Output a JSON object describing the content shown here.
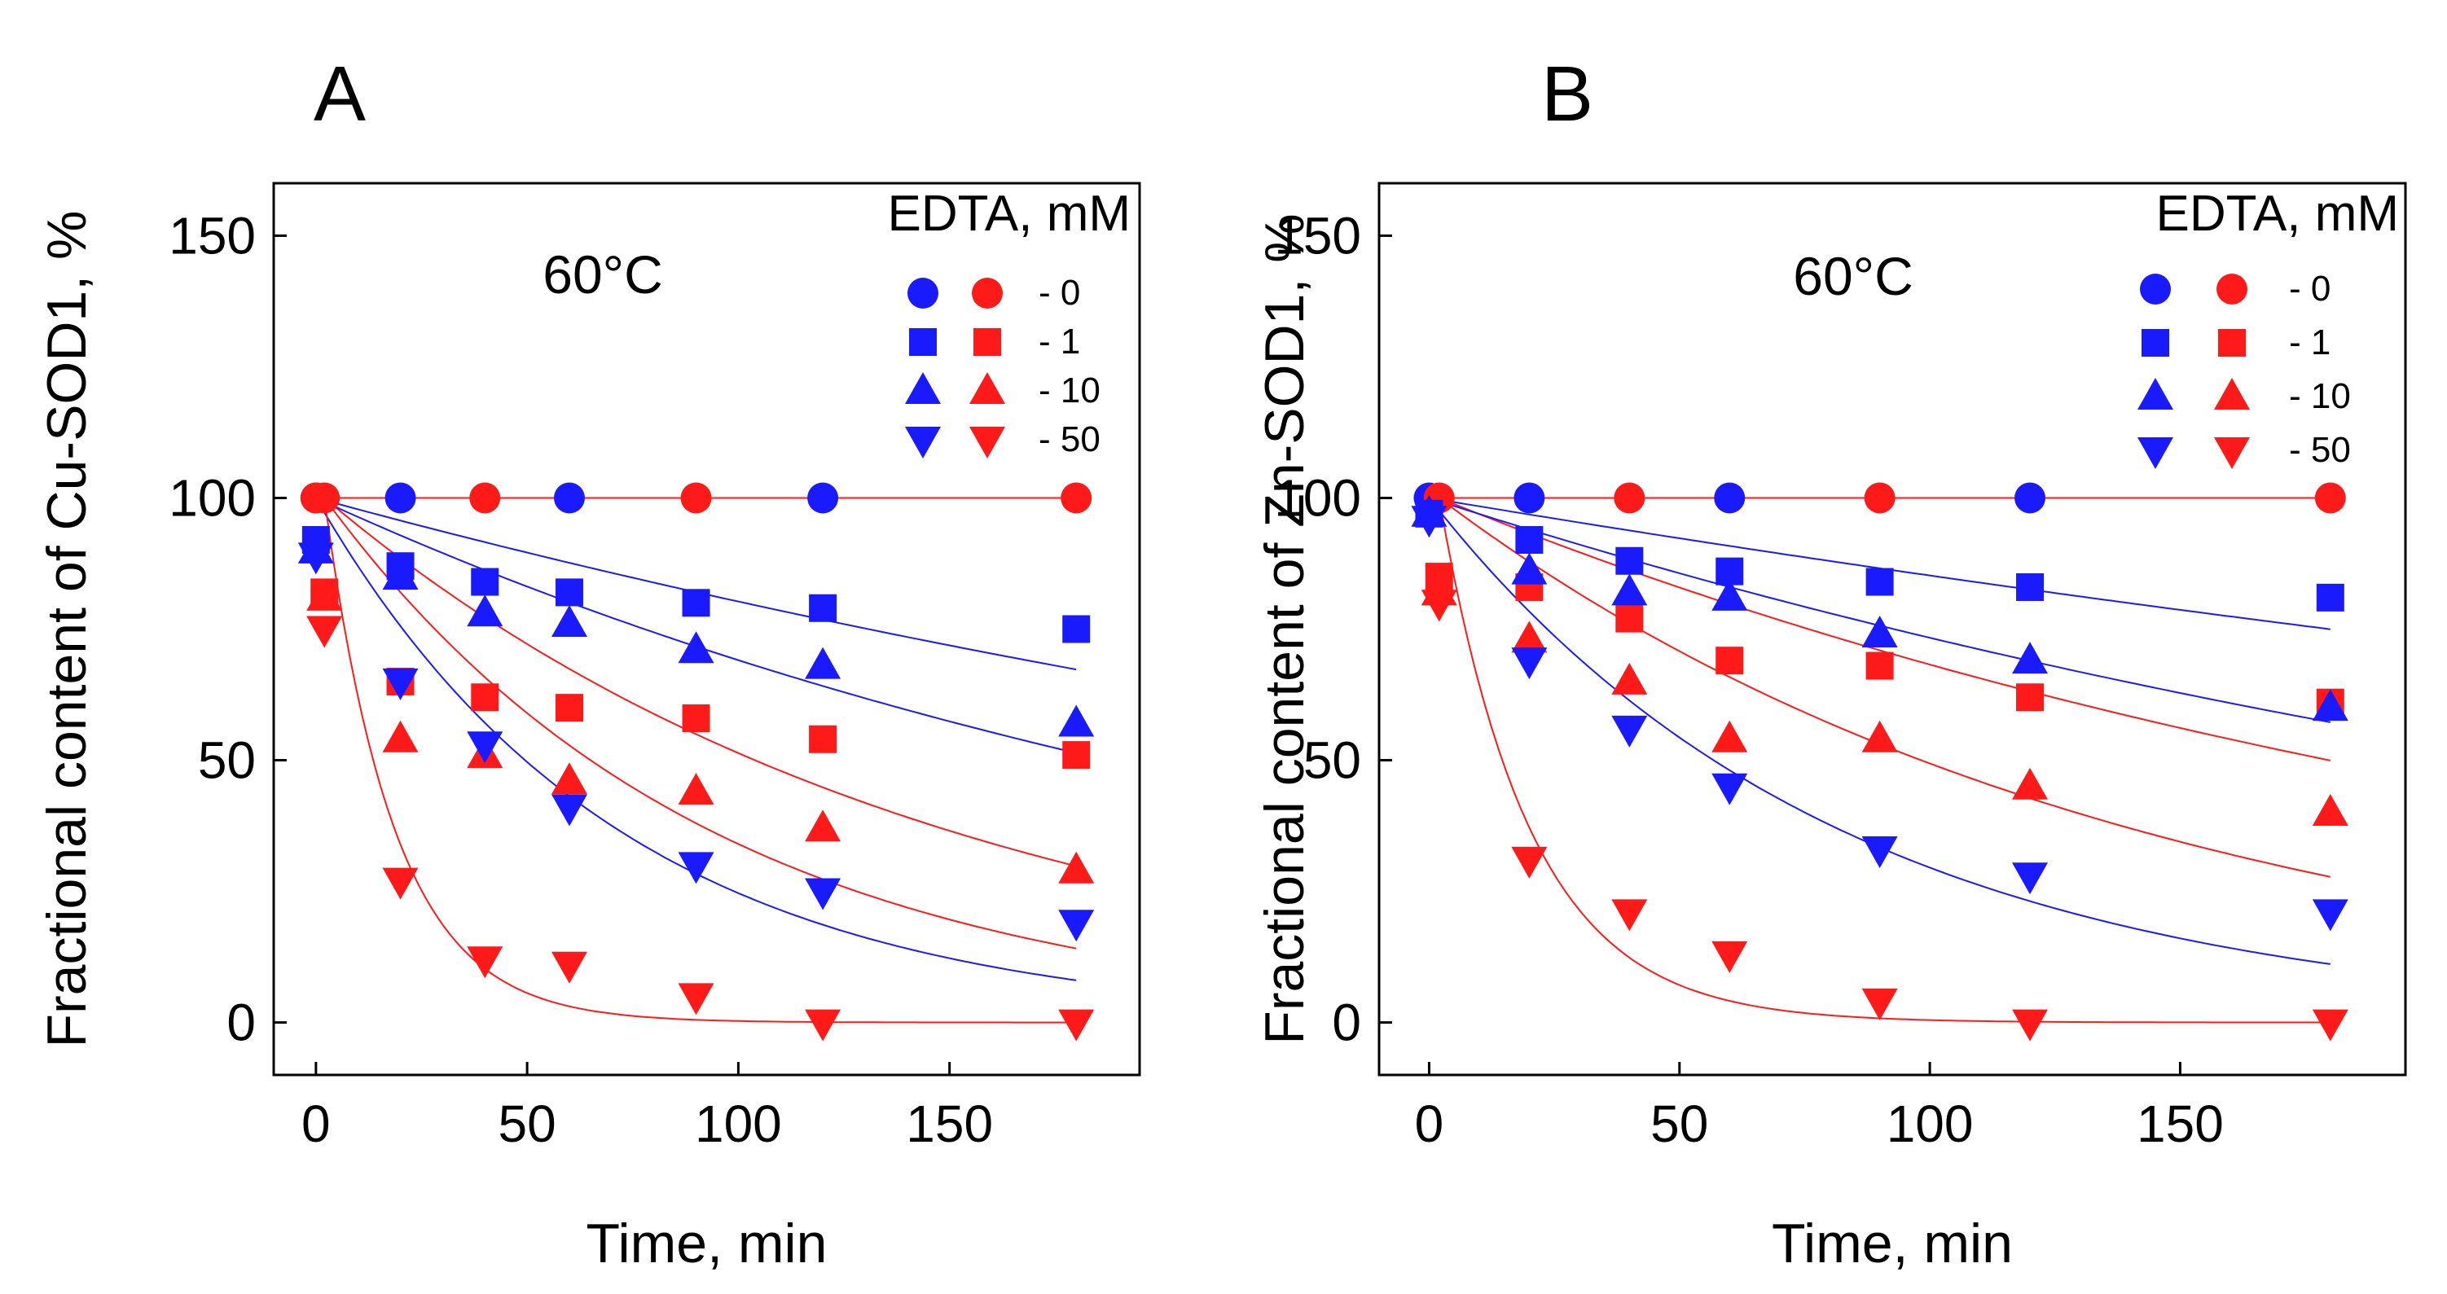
{
  "colors": {
    "blue": "#1a1aff",
    "red": "#ff1a1a",
    "axis": "#000000"
  },
  "legend_values": [
    "- 0",
    "- 1",
    "- 10",
    "- 50"
  ],
  "chart_data": [
    {
      "type": "scatter",
      "panel_label": "A",
      "title": "",
      "annotation": "60°C",
      "xlabel": "Time, min",
      "ylabel": "Fractional content of Cu-SOD1, %",
      "xlim": [
        -10,
        195
      ],
      "ylim": [
        -10,
        160
      ],
      "xticks": [
        0,
        50,
        100,
        150
      ],
      "yticks": [
        0,
        50,
        100,
        150
      ],
      "legend_title": "EDTA, mM",
      "legend_position": "top-right",
      "series": [
        {
          "name": "0 mM (blue)",
          "edta": "0",
          "color": "blue",
          "marker": "circle",
          "x": [
            0,
            20,
            60,
            120
          ],
          "y": [
            100,
            100,
            100,
            100
          ],
          "fit_k": 0
        },
        {
          "name": "0 mM (red)",
          "edta": "0",
          "color": "red",
          "marker": "circle",
          "x": [
            0,
            2,
            40,
            90,
            180
          ],
          "y": [
            100,
            100,
            100,
            100,
            100
          ],
          "fit_k": 0
        },
        {
          "name": "1 mM (blue)",
          "edta": "1",
          "color": "blue",
          "marker": "square",
          "x": [
            0,
            20,
            40,
            60,
            90,
            120,
            180
          ],
          "y": [
            92,
            87,
            84,
            82,
            80,
            79,
            75
          ],
          "fit_k": 0.0022
        },
        {
          "name": "1 mM (red)",
          "edta": "1",
          "color": "red",
          "marker": "square",
          "x": [
            2,
            20,
            40,
            60,
            90,
            120,
            180
          ],
          "y": [
            82,
            65,
            62,
            60,
            58,
            54,
            51
          ],
          "fit_k": 0.0068
        },
        {
          "name": "10 mM (blue)",
          "edta": "10",
          "color": "blue",
          "marker": "triangle-up",
          "x": [
            0,
            20,
            40,
            60,
            90,
            120,
            180
          ],
          "y": [
            90,
            85,
            78,
            76,
            71,
            68,
            57
          ],
          "fit_k": 0.0037
        },
        {
          "name": "10 mM (red)",
          "edta": "10",
          "color": "red",
          "marker": "triangle-up",
          "x": [
            2,
            20,
            40,
            60,
            90,
            120,
            180
          ],
          "y": [
            81,
            54,
            51,
            46,
            44,
            37,
            29
          ],
          "fit_k": 0.011
        },
        {
          "name": "50 mM (blue)",
          "edta": "50",
          "color": "blue",
          "marker": "triangle-down",
          "x": [
            0,
            20,
            40,
            60,
            90,
            120,
            180
          ],
          "y": [
            89,
            65,
            53,
            41,
            30,
            25,
            19
          ],
          "fit_k": 0.014
        },
        {
          "name": "50 mM (red)",
          "edta": "50",
          "color": "red",
          "marker": "triangle-down",
          "x": [
            2,
            20,
            40,
            60,
            90,
            120,
            180
          ],
          "y": [
            75,
            27,
            12,
            11,
            5,
            0,
            0
          ],
          "fit_k": 0.06
        }
      ]
    },
    {
      "type": "scatter",
      "panel_label": "B",
      "title": "",
      "annotation": "60°C",
      "xlabel": "Time, min",
      "ylabel": "Fractional content of Zn-SOD1, %",
      "xlim": [
        -10,
        195
      ],
      "ylim": [
        -10,
        160
      ],
      "xticks": [
        0,
        50,
        100,
        150
      ],
      "yticks": [
        0,
        50,
        100,
        150
      ],
      "legend_title": "EDTA, mM",
      "legend_position": "top-right",
      "series": [
        {
          "name": "0 mM (blue)",
          "edta": "0",
          "color": "blue",
          "marker": "circle",
          "x": [
            0,
            20,
            60,
            120
          ],
          "y": [
            100,
            100,
            100,
            100
          ],
          "fit_k": 0
        },
        {
          "name": "0 mM (red)",
          "edta": "0",
          "color": "red",
          "marker": "circle",
          "x": [
            2,
            40,
            90,
            180
          ],
          "y": [
            100,
            100,
            100,
            100
          ],
          "fit_k": 0
        },
        {
          "name": "1 mM (blue)",
          "edta": "1",
          "color": "blue",
          "marker": "square",
          "x": [
            0,
            20,
            40,
            60,
            90,
            120,
            180
          ],
          "y": [
            97,
            92,
            88,
            86,
            84,
            83,
            81
          ],
          "fit_k": 0.0016
        },
        {
          "name": "1 mM (red)",
          "edta": "1",
          "color": "red",
          "marker": "square",
          "x": [
            2,
            20,
            40,
            60,
            90,
            120,
            180
          ],
          "y": [
            85,
            83,
            77,
            69,
            68,
            62,
            61
          ],
          "fit_k": 0.0039
        },
        {
          "name": "10 mM (blue)",
          "edta": "10",
          "color": "blue",
          "marker": "triangle-up",
          "x": [
            0,
            20,
            40,
            60,
            90,
            120,
            180
          ],
          "y": [
            97,
            86,
            82,
            81,
            74,
            69,
            60
          ],
          "fit_k": 0.0031
        },
        {
          "name": "10 mM (red)",
          "edta": "10",
          "color": "red",
          "marker": "triangle-up",
          "x": [
            2,
            20,
            40,
            60,
            90,
            120,
            180
          ],
          "y": [
            82,
            73,
            65,
            54,
            54,
            45,
            40
          ],
          "fit_k": 0.0072
        },
        {
          "name": "50 mM (blue)",
          "edta": "50",
          "color": "blue",
          "marker": "triangle-down",
          "x": [
            0,
            20,
            40,
            60,
            90,
            120,
            180
          ],
          "y": [
            96,
            69,
            56,
            45,
            33,
            28,
            21
          ],
          "fit_k": 0.0122
        },
        {
          "name": "50 mM (red)",
          "edta": "50",
          "color": "red",
          "marker": "triangle-down",
          "x": [
            2,
            20,
            40,
            60,
            90,
            120,
            180
          ],
          "y": [
            80,
            31,
            21,
            13,
            4,
            0,
            0
          ],
          "fit_k": 0.055
        }
      ]
    }
  ]
}
